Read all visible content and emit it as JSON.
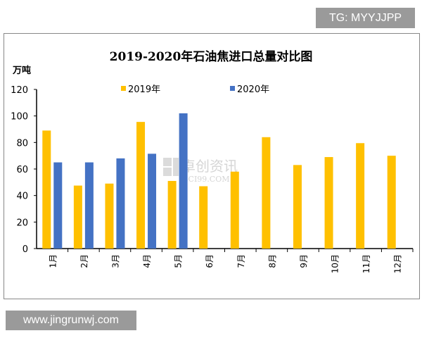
{
  "overlay": {
    "top_right": "TG: MYYJJPP",
    "bottom_left": "www.jingrunwj.com"
  },
  "watermark": {
    "cn": "卓创资讯",
    "en": "SCI99.COM"
  },
  "chart_data": {
    "type": "bar",
    "title": "2019-2020年石油焦进口总量对比图",
    "ylabel": "万吨",
    "xlabel": "",
    "ylim": [
      0,
      120
    ],
    "yticks": [
      0,
      20,
      40,
      60,
      80,
      100,
      120
    ],
    "grid": false,
    "legend": "top",
    "categories": [
      "1月",
      "2月",
      "3月",
      "4月",
      "5月",
      "6月",
      "7月",
      "8月",
      "9月",
      "10月",
      "11月",
      "12月"
    ],
    "series": [
      {
        "name": "2019年",
        "color": "#FFC000",
        "values": [
          89,
          47.5,
          49,
          95.5,
          51,
          47,
          58,
          84,
          63,
          69,
          79.5,
          70
        ]
      },
      {
        "name": "2020年",
        "color": "#4472C4",
        "values": [
          65,
          65,
          68,
          71.5,
          102,
          null,
          null,
          null,
          null,
          null,
          null,
          null
        ]
      }
    ]
  }
}
